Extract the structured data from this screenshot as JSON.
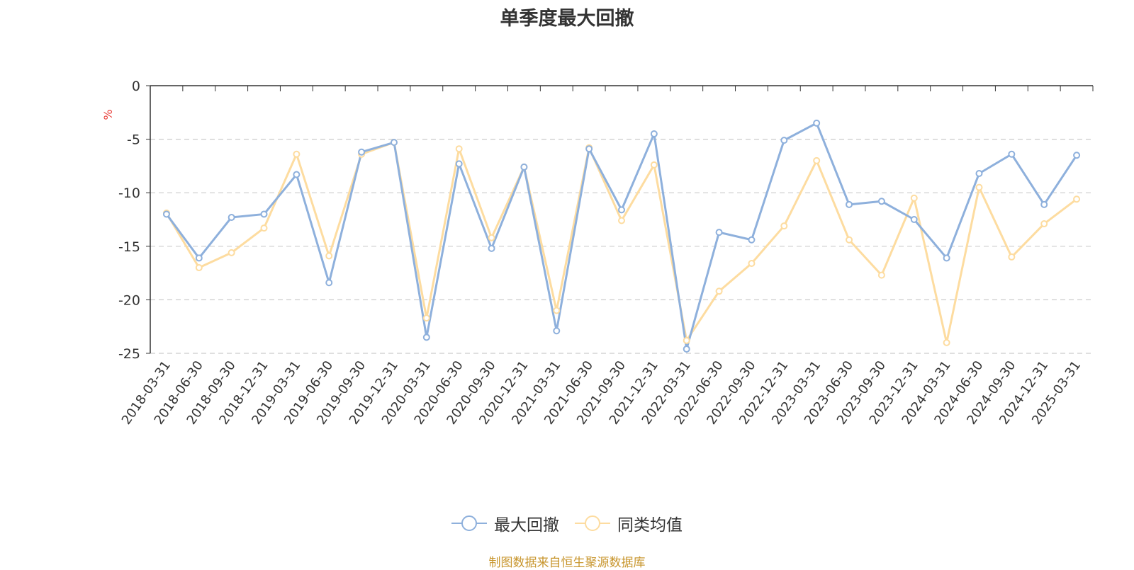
{
  "chart_data": {
    "type": "line",
    "title": "单季度最大回撤",
    "ylabel": "%",
    "ylim": [
      -25,
      0
    ],
    "yticks": [
      0,
      -5,
      -10,
      -15,
      -20,
      -25
    ],
    "grid": true,
    "legend_position": "bottom",
    "categories": [
      "2018-03-31",
      "2018-06-30",
      "2018-09-30",
      "2018-12-31",
      "2019-03-31",
      "2019-06-30",
      "2019-09-30",
      "2019-12-31",
      "2020-03-31",
      "2020-06-30",
      "2020-09-30",
      "2020-12-31",
      "2021-03-31",
      "2021-06-30",
      "2021-09-30",
      "2021-12-31",
      "2022-03-31",
      "2022-06-30",
      "2022-09-30",
      "2022-12-31",
      "2023-03-31",
      "2023-06-30",
      "2023-09-30",
      "2023-12-31",
      "2024-03-31",
      "2024-06-30",
      "2024-09-30",
      "2024-12-31",
      "2025-03-31"
    ],
    "series": [
      {
        "name": "最大回撤",
        "color": "#8eb0dc",
        "values": [
          -12.0,
          -16.1,
          -12.3,
          -12.0,
          -8.3,
          -18.4,
          -6.2,
          -5.3,
          -23.5,
          -7.3,
          -15.2,
          -7.6,
          -22.9,
          -5.9,
          -11.6,
          -4.5,
          -24.6,
          -13.7,
          -14.4,
          -5.1,
          -3.5,
          -11.1,
          -10.8,
          -12.5,
          -16.1,
          -8.2,
          -6.4,
          -11.1,
          -6.5
        ]
      },
      {
        "name": "同类均值",
        "color": "#fddca0",
        "values": [
          -11.9,
          -17.0,
          -15.6,
          -13.3,
          -6.4,
          -15.9,
          -6.4,
          -5.3,
          -21.7,
          -5.9,
          -14.2,
          -7.6,
          -21.0,
          -5.8,
          -12.6,
          -7.4,
          -23.8,
          -19.2,
          -16.6,
          -13.1,
          -7.0,
          -14.4,
          -17.7,
          -10.5,
          -24.0,
          -9.5,
          -16.0,
          -12.9,
          -10.6
        ]
      }
    ]
  },
  "source_text": "制图数据来自恒生聚源数据库"
}
